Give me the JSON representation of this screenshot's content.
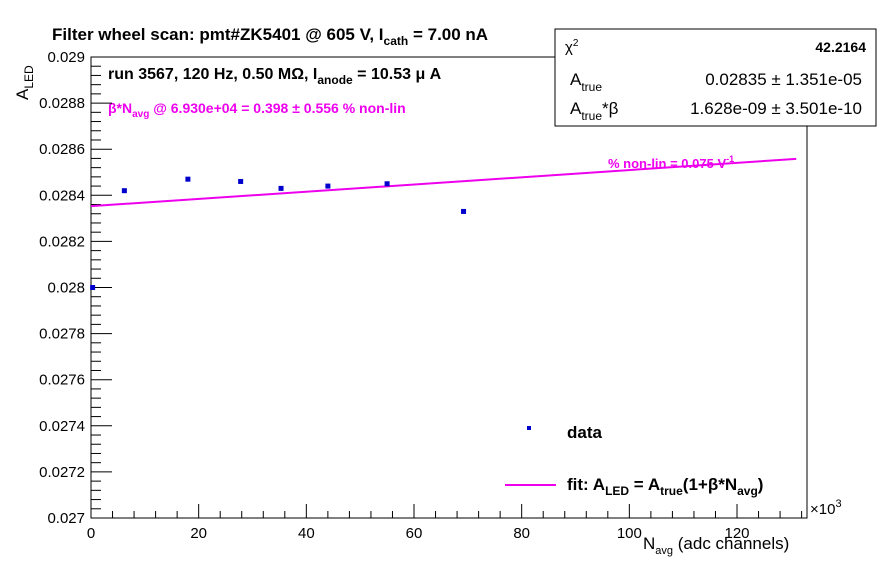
{
  "chart_data": {
    "type": "scatter",
    "title": {
      "part1": "Filter wheel scan: pmt#ZK5401 @   605 V, I",
      "part1_sub": "cath",
      "part2": " = 7.00 nA"
    },
    "run_info": {
      "part1": "run 3567, 120 Hz, 0.50 MΩ, I",
      "part1_sub": "anode",
      "part2": " = 10.53 μ A"
    },
    "nonlin_note": {
      "part1": "β*N",
      "part1_sub": "avg",
      "part2": " @ 6.930e+04 = 0.398 ± 0.556 % non-lin"
    },
    "fit_label": {
      "text": "% non-lin = 0.075 V",
      "sup": "-1"
    },
    "xlabel": {
      "main": "N",
      "sub": "avg",
      "rest": " (adc channels)"
    },
    "ylabel": {
      "main": "A",
      "sub": "LED"
    },
    "x_exponent": {
      "prefix": "×10",
      "power": "3"
    },
    "xlim": [
      0,
      133
    ],
    "ylim": [
      0.027,
      0.029
    ],
    "x_ticks": [
      0,
      20,
      40,
      60,
      80,
      100,
      120
    ],
    "x_tick_labels": [
      "0",
      "20",
      "40",
      "60",
      "80",
      "100",
      "120"
    ],
    "y_ticks": [
      0.027,
      0.0272,
      0.0274,
      0.0276,
      0.0278,
      0.028,
      0.0282,
      0.0284,
      0.0286,
      0.0288,
      0.029
    ],
    "y_tick_labels": [
      "0.027",
      "0.0272",
      "0.0274",
      "0.0276",
      "0.0278",
      "0.028",
      "0.0282",
      "0.0284",
      "0.0286",
      "0.0288",
      "0.029"
    ],
    "series": [
      {
        "name": "data",
        "x": [
          0.3,
          6.2,
          18.0,
          27.8,
          35.3,
          44.0,
          55.0,
          69.2
        ],
        "y": [
          0.028,
          0.02842,
          0.02847,
          0.02846,
          0.02843,
          0.02844,
          0.02845,
          0.02833
        ],
        "yerr": [
          5e-06,
          5e-06,
          5e-06,
          5e-06,
          5e-06,
          5e-06,
          5e-06,
          5e-06
        ]
      }
    ],
    "fit": {
      "x": [
        0,
        131
      ],
      "y": [
        0.028353,
        0.028558
      ]
    },
    "stats_box": {
      "rows": [
        {
          "label_main": "χ",
          "label_sup": "2",
          "label_sub": "",
          "label_tail": "",
          "value": "42.2164"
        },
        {
          "label_main": "A",
          "label_sup": "",
          "label_sub": "true",
          "label_tail": "",
          "value": "0.02835 ± 1.351e-05"
        },
        {
          "label_main": "A",
          "label_sup": "",
          "label_sub": "true",
          "label_tail": "*β",
          "value": "1.628e-09 ± 3.501e-10"
        }
      ]
    },
    "legend": {
      "entries": [
        {
          "label": "data"
        },
        {
          "main": "fit: A",
          "sub1": "LED",
          "mid": " = A",
          "sub2": "true",
          "mid2": "(1+β*N",
          "sub3": "avg",
          "end": ")"
        }
      ]
    },
    "colors": {
      "data": "#0000cc",
      "fit": "#ee00ee",
      "note": "#ee00ee",
      "axis": "#000000"
    },
    "grid": false
  }
}
